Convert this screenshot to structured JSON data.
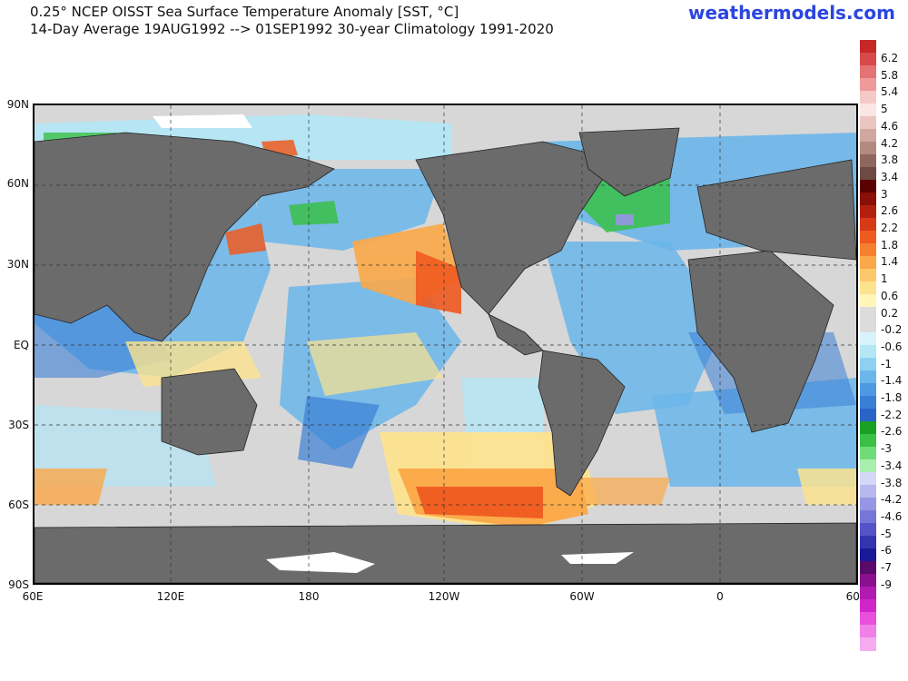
{
  "header": {
    "title_line1": "0.25° NCEP OISST Sea Surface Temperature Anomaly [SST, °C]",
    "title_line2": "14-Day Average 19AUG1992 --> 01SEP1992   30-year Climatology 1991-2020",
    "brand": "weathermodels.com"
  },
  "axes": {
    "lat_labels": [
      "90N",
      "60N",
      "30N",
      "EQ",
      "30S",
      "60S",
      "90S"
    ],
    "lon_labels": [
      "60E",
      "120E",
      "180",
      "120W",
      "60W",
      "0",
      "60E"
    ]
  },
  "colorbar": {
    "labels": [
      "6.2",
      "5.8",
      "5.4",
      "5",
      "4.6",
      "4.2",
      "3.8",
      "3.4",
      "3",
      "2.6",
      "2.2",
      "1.8",
      "1.4",
      "1",
      "0.6",
      "0.2",
      "-0.2",
      "-0.6",
      "-1",
      "-1.4",
      "-1.8",
      "-2.2",
      "-2.6",
      "-3",
      "-3.4",
      "-3.8",
      "-4.2",
      "-4.6",
      "-5",
      "-6",
      "-7",
      "-9"
    ],
    "colors": [
      "#c62828",
      "#d84a4a",
      "#e57373",
      "#ef9a9a",
      "#f6c9c9",
      "#fbe6e6",
      "#e9c6c0",
      "#cfa79f",
      "#b28a80",
      "#8e6860",
      "#6d4a44",
      "#5a0000",
      "#8a0f06",
      "#b42010",
      "#d83a18",
      "#ef5a20",
      "#f6802e",
      "#fba848",
      "#fcc86a",
      "#fde38f",
      "#fff6b8",
      "#dcdcdc",
      "#dcdcdc",
      "#d8f3fb",
      "#b4e6f6",
      "#8fd0f0",
      "#6bb6ea",
      "#4e9ae2",
      "#3a7fd6",
      "#2a64c6",
      "#1aa023",
      "#3ac046",
      "#6fdc78",
      "#a8eeaf",
      "#d6d6f6",
      "#b8b8ee",
      "#9696e4",
      "#7676d8",
      "#5454c8",
      "#3434b0",
      "#1a1a98",
      "#5a0a6a",
      "#8a108e",
      "#b01ab0",
      "#d026c8",
      "#e850dc",
      "#f080e6",
      "#f6aaf0"
    ]
  },
  "map_colors": {
    "ocean_neutral": "#d7d7d7",
    "land": "#6b6b6b",
    "ice": "#ffffff",
    "warm_1": "#fde38f",
    "warm_2": "#fba848",
    "warm_3": "#ef5a20",
    "warm_4": "#c62812",
    "cool_1": "#b4e6f6",
    "cool_2": "#6bb6ea",
    "cool_3": "#3a7fd6",
    "cool_4": "#2a64c6",
    "green": "#3ac046",
    "purple": "#6a1a9a"
  }
}
